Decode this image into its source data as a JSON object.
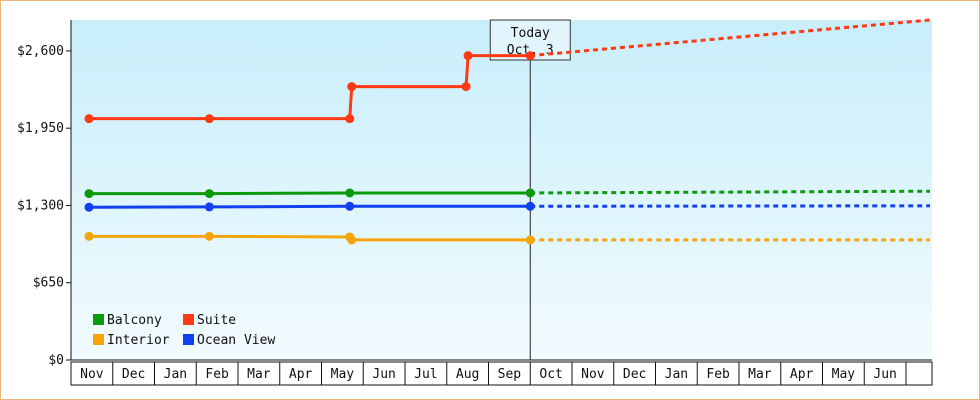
{
  "chart_data": {
    "type": "line",
    "y_axis": {
      "min": 0,
      "max": 2860,
      "ticks": [
        0,
        650,
        1300,
        1950,
        2600
      ],
      "tick_labels": [
        "$0",
        "$650",
        "$1,300",
        "$1,950",
        "$2,600"
      ]
    },
    "months": [
      "Nov",
      "Dec",
      "Jan",
      "Feb",
      "Mar",
      "Apr",
      "May",
      "Jun",
      "Jul",
      "Aug",
      "Sep",
      "Oct",
      "Nov",
      "Dec",
      "Jan",
      "Feb",
      "Mar",
      "Apr",
      "May",
      "Jun"
    ],
    "today": {
      "line1": "Today",
      "line2": "Oct. 3",
      "x": 11.0
    },
    "series": [
      {
        "name": "Suite",
        "color": "#ff3a12",
        "points": [
          [
            0,
            2030
          ],
          [
            3,
            2030
          ],
          [
            6.5,
            2030
          ],
          [
            6.55,
            2300
          ],
          [
            9.4,
            2300
          ],
          [
            9.45,
            2560
          ],
          [
            11,
            2560
          ]
        ],
        "markers": [
          [
            0,
            2030
          ],
          [
            3,
            2030
          ],
          [
            6.5,
            2030
          ],
          [
            6.55,
            2300
          ],
          [
            9.4,
            2300
          ],
          [
            9.45,
            2560
          ],
          [
            11,
            2560
          ]
        ],
        "projection": [
          [
            11,
            2560
          ],
          [
            20,
            2860
          ]
        ]
      },
      {
        "name": "Balcony",
        "color": "#0b9a0b",
        "points": [
          [
            0,
            1400
          ],
          [
            3,
            1400
          ],
          [
            6.5,
            1405
          ],
          [
            11,
            1405
          ]
        ],
        "markers": [
          [
            0,
            1400
          ],
          [
            3,
            1400
          ],
          [
            6.5,
            1405
          ],
          [
            11,
            1405
          ]
        ],
        "projection": [
          [
            11,
            1405
          ],
          [
            20,
            1420
          ]
        ]
      },
      {
        "name": "Ocean View",
        "color": "#1140f0",
        "points": [
          [
            0,
            1285
          ],
          [
            3,
            1288
          ],
          [
            6.5,
            1293
          ],
          [
            11,
            1293
          ]
        ],
        "markers": [
          [
            0,
            1285
          ],
          [
            3,
            1288
          ],
          [
            6.5,
            1293
          ],
          [
            11,
            1293
          ]
        ],
        "projection": [
          [
            11,
            1293
          ],
          [
            20,
            1297
          ]
        ]
      },
      {
        "name": "Interior",
        "color": "#f6a40c",
        "points": [
          [
            0,
            1040
          ],
          [
            3,
            1040
          ],
          [
            6.5,
            1035
          ],
          [
            6.55,
            1010
          ],
          [
            11,
            1010
          ]
        ],
        "markers": [
          [
            0,
            1040
          ],
          [
            3,
            1040
          ],
          [
            6.5,
            1035
          ],
          [
            6.55,
            1010
          ],
          [
            11,
            1010
          ]
        ],
        "projection": [
          [
            11,
            1010
          ],
          [
            20,
            1010
          ]
        ]
      }
    ],
    "legend_order": [
      "Balcony",
      "Suite",
      "Interior",
      "Ocean View"
    ],
    "grid": false,
    "legend_position": "bottom-left"
  }
}
